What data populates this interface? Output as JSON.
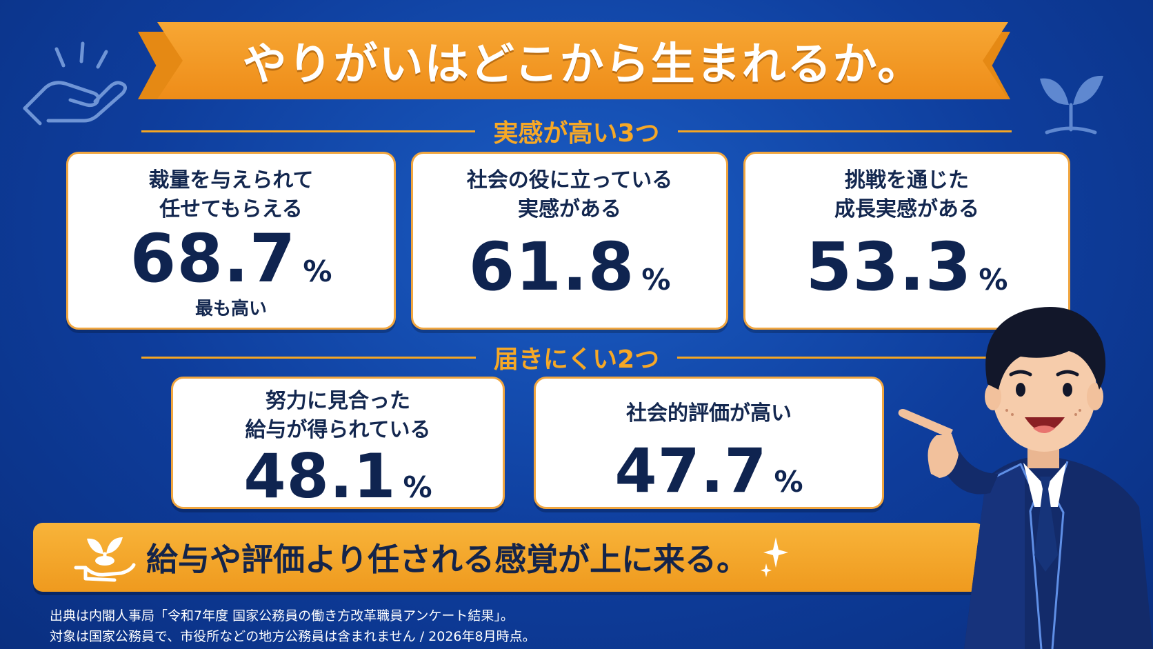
{
  "title": "やりがいはどこから生まれるか。",
  "section_high": "実感が高い3つ",
  "section_low": "届きにくい2つ",
  "high_cards": [
    {
      "line1": "裁量を与えられて",
      "line2": "任せてもらえる",
      "value": "68.7",
      "unit": "%",
      "note": "最も高い"
    },
    {
      "line1": "社会の役に立っている",
      "line2": "実感がある",
      "value": "61.8",
      "unit": "%"
    },
    {
      "line1": "挑戦を通じた",
      "line2": "成長実感がある",
      "value": "53.3",
      "unit": "%"
    }
  ],
  "low_cards": [
    {
      "line1": "努力に見合った",
      "line2": "給与が得られている",
      "value": "48.1",
      "unit": "%"
    },
    {
      "line1": "社会的評価が高い",
      "value": "47.7",
      "unit": "%"
    }
  ],
  "conclusion": "給与や評価より任される感覚が上に来る。",
  "footer": {
    "line1": "出典は内閣人事局「令和7年度 国家公務員の働き方改革職員アンケート結果」。",
    "line2": "対象は国家公務員で、市役所などの地方公務員は含まれません / 2026年8月時点。"
  },
  "colors": {
    "background": "#0e3d9c",
    "accent": "#f5a623",
    "text": "#0f2450"
  }
}
